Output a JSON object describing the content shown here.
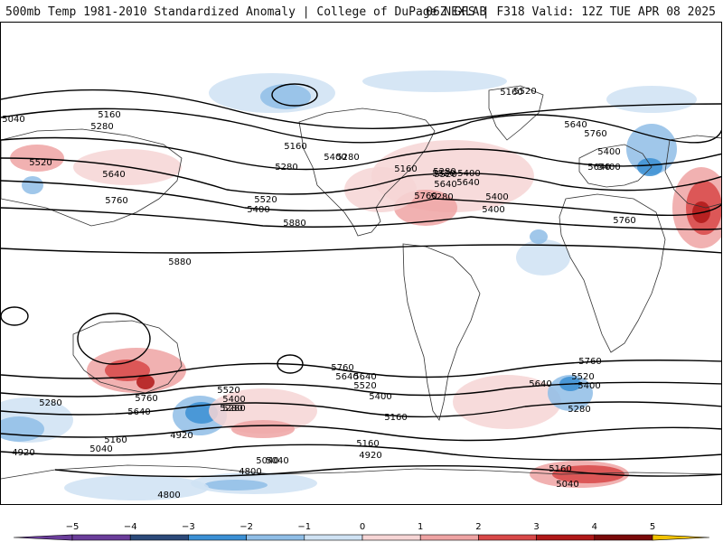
{
  "header": {
    "left": "500mb Temp 1981-2010 Standardized Anomaly | College of DuPage NEXLAB",
    "right": "06Z GFS | F318 Valid: 12Z TUE APR 08 2025"
  },
  "colors": {
    "cold5": "#6a3d9a",
    "cold4": "#2c4a7a",
    "cold3": "#3b8fd4",
    "cold2": "#8fbde6",
    "cold1": "#cfe2f3",
    "warm1": "#f6d5d5",
    "warm2": "#eea3a3",
    "warm3": "#d84848",
    "warm4": "#b01818",
    "warm5": "#7a0a0a",
    "gold": "#f2c200"
  },
  "colorbar": {
    "ticks": [
      "−5",
      "−4",
      "−3",
      "−2",
      "−1",
      "0",
      "1",
      "2",
      "3",
      "4",
      "5"
    ]
  },
  "contour_labels": [
    "5160",
    "5040",
    "5160",
    "5280",
    "5160",
    "5280",
    "5400",
    "5520",
    "5640",
    "5760",
    "5520",
    "5400",
    "5520",
    "5640",
    "5760",
    "5400",
    "5400",
    "5640",
    "5760",
    "5880",
    "5160",
    "5280",
    "5400",
    "5520",
    "5640",
    "5280",
    "5400",
    "5520",
    "5640",
    "5760",
    "5880",
    "5280",
    "5640",
    "5760",
    "5640",
    "5520",
    "5400",
    "5280",
    "5160",
    "5040",
    "4920",
    "5160",
    "5040",
    "4920",
    "5280",
    "5520",
    "5400",
    "5640",
    "5760",
    "5520",
    "5400",
    "5280",
    "5160",
    "4920",
    "5040",
    "4800",
    "4800",
    "5160",
    "5040",
    "5400",
    "5280",
    "5760",
    "5640"
  ]
}
